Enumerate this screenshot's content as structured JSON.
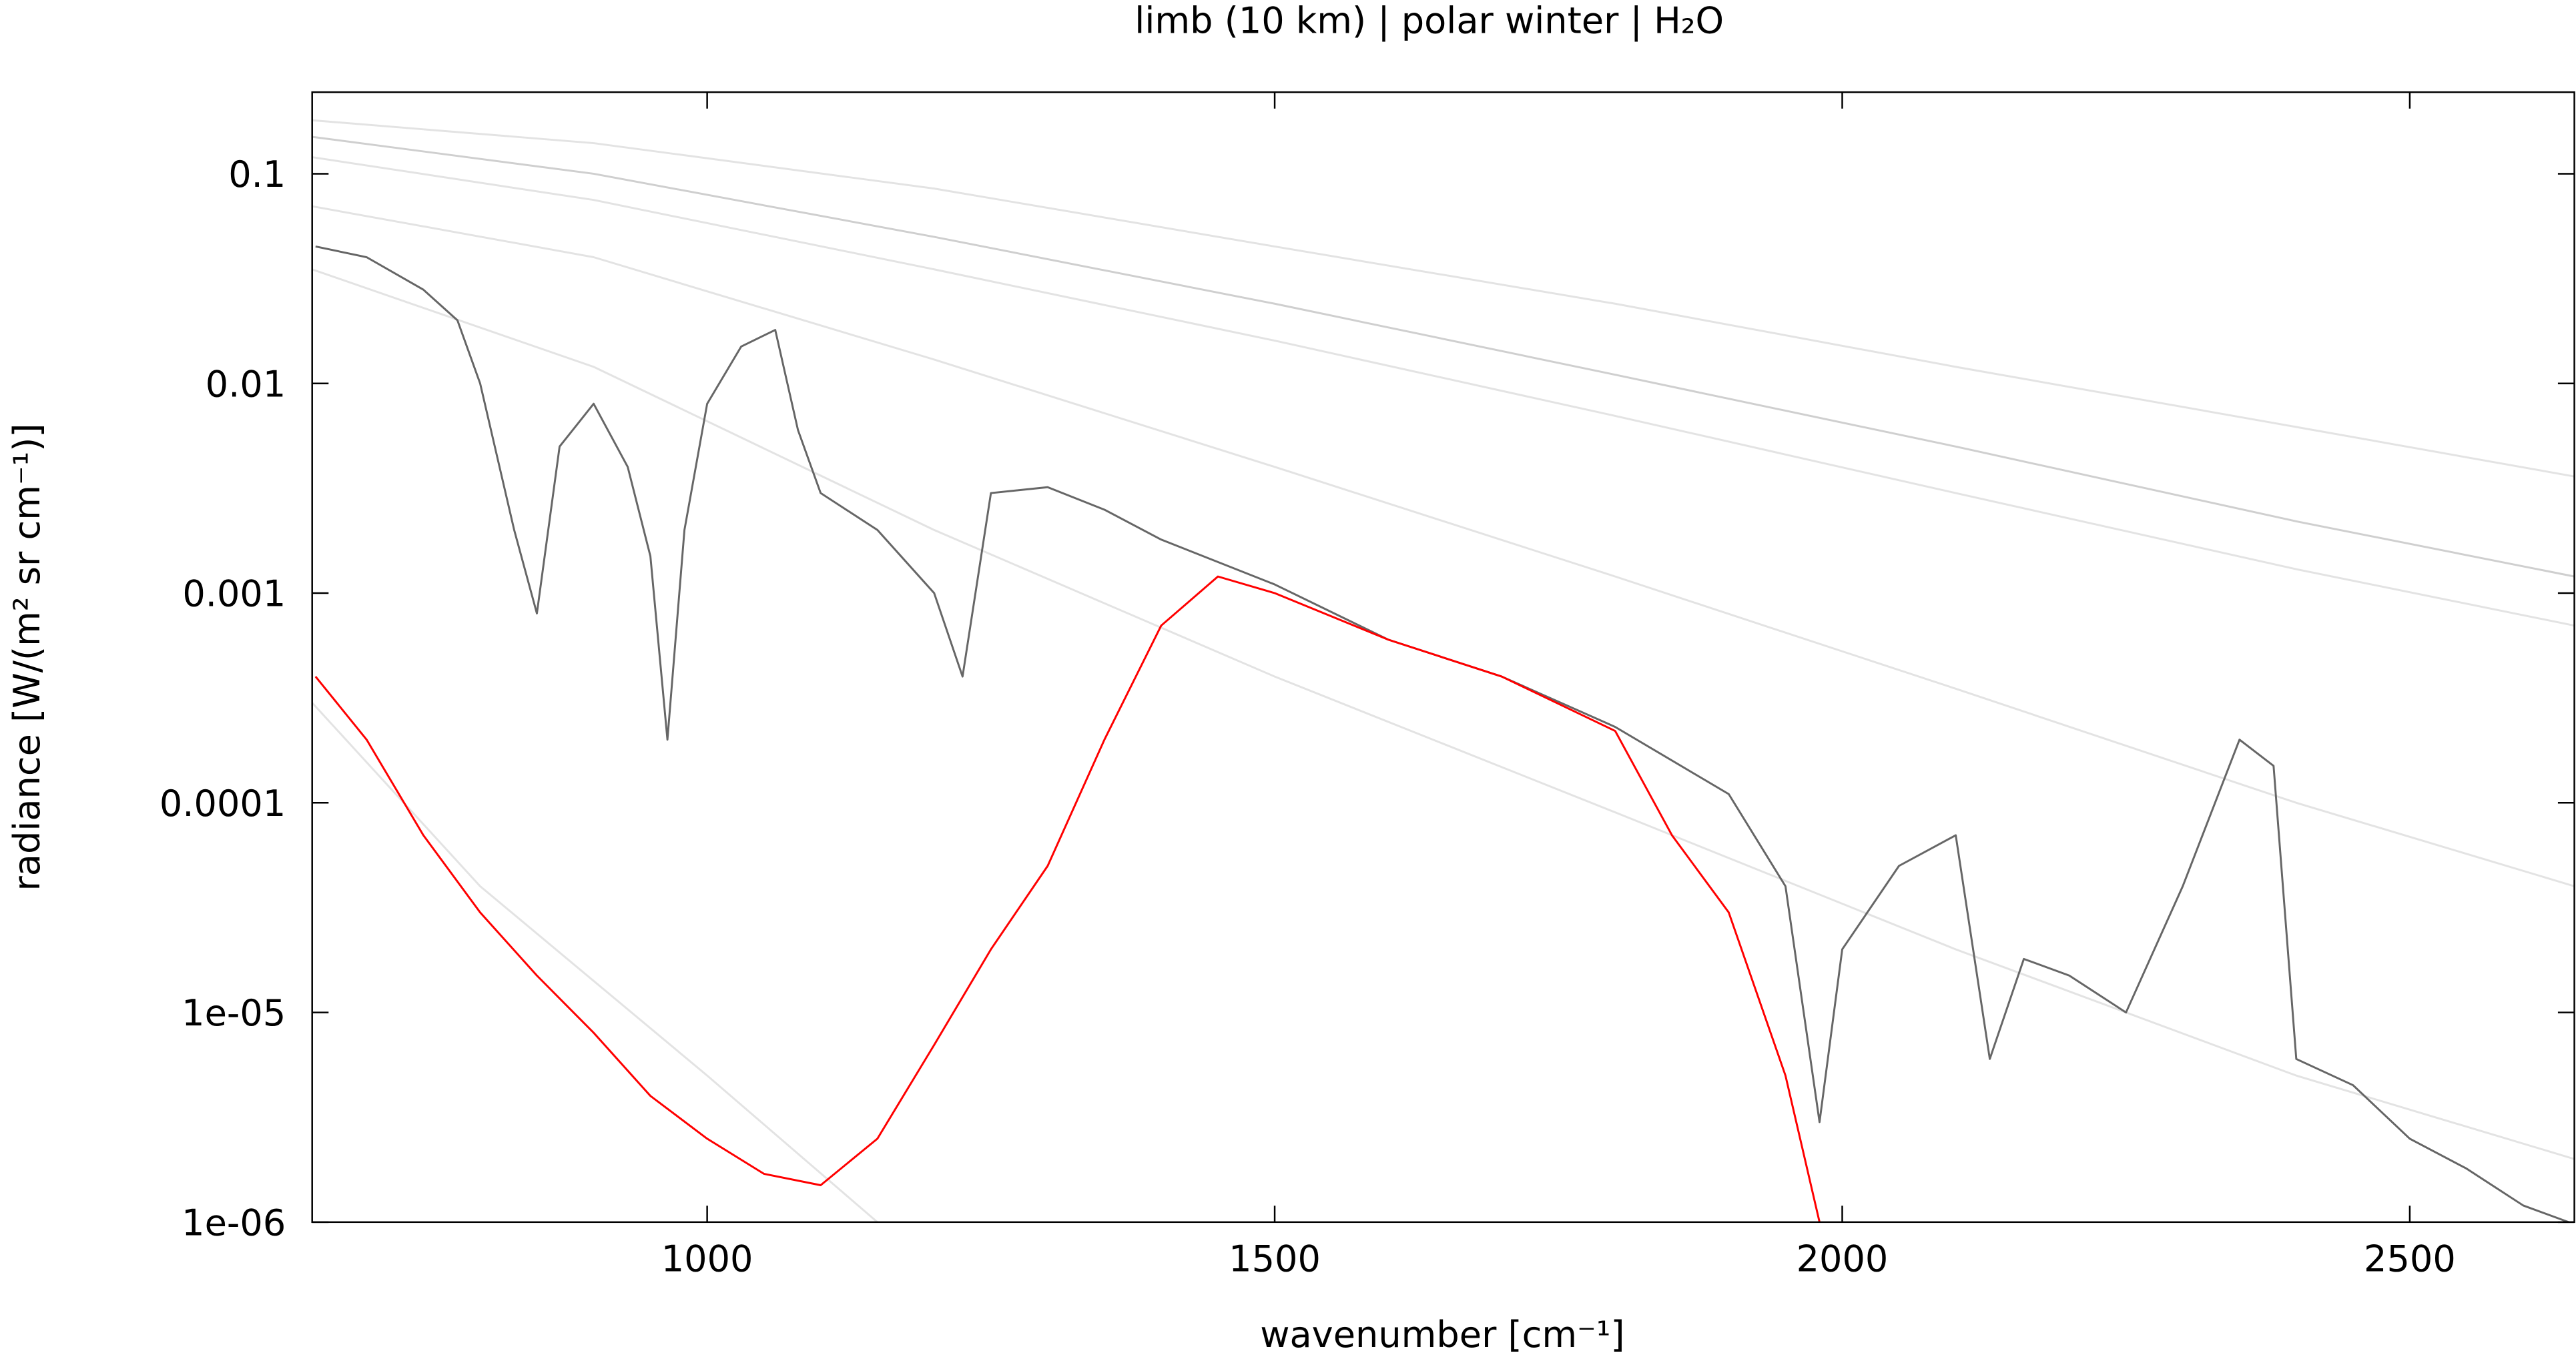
{
  "chart_data": {
    "type": "line",
    "title": "limb (10 km) | polar winter | H₂O",
    "xlabel": "wavenumber [cm⁻¹]",
    "ylabel": "radiance [W/(m² sr cm⁻¹)]",
    "xlim": [
      652,
      2645
    ],
    "ylim": [
      1e-06,
      0.245
    ],
    "ylog": true,
    "xticks": [
      1000,
      1500,
      2000,
      2500
    ],
    "yticks": [
      0.1,
      0.01,
      0.001,
      0.0001,
      {
        "value": 1e-05,
        "label": "1e-05"
      },
      {
        "value": 1e-06,
        "label": "1e-06"
      }
    ],
    "series": [
      {
        "color": "#e3e3e3",
        "x": [
          652,
          900,
          1200,
          1500,
          1800,
          2100,
          2400,
          2645
        ],
        "values": [
          0.18,
          0.14,
          0.085,
          0.045,
          0.024,
          0.012,
          0.0062,
          0.0036
        ]
      },
      {
        "color": "#cfcfcf",
        "x": [
          652,
          900,
          1200,
          1500,
          1800,
          2100,
          2400,
          2645
        ],
        "values": [
          0.15,
          0.1,
          0.05,
          0.024,
          0.011,
          0.005,
          0.0022,
          0.0012
        ]
      },
      {
        "color": "#e3e3e3",
        "x": [
          652,
          900,
          1200,
          1500,
          1800,
          2100,
          2400,
          2645
        ],
        "values": [
          0.12,
          0.075,
          0.035,
          0.016,
          0.007,
          0.003,
          0.0013,
          0.0007
        ]
      },
      {
        "color": "#e3e3e3",
        "x": [
          652,
          900,
          1200,
          1500,
          1800,
          2100,
          2400,
          2645
        ],
        "values": [
          0.07,
          0.04,
          0.013,
          0.004,
          0.0012,
          0.00035,
          0.0001,
          4e-05
        ]
      },
      {
        "color": "#e3e3e3",
        "x": [
          652,
          900,
          1200,
          1500,
          1800,
          2100,
          2400,
          2645
        ],
        "values": [
          0.035,
          0.012,
          0.002,
          0.0004,
          9e-05,
          2e-05,
          5e-06,
          2e-06
        ]
      },
      {
        "color": "#e3e3e3",
        "x": [
          652,
          800,
          1000,
          1150
        ],
        "values": [
          0.0003,
          4e-05,
          5e-06,
          1e-06
        ]
      },
      {
        "color": "#666666",
        "x": [
          655,
          700,
          750,
          780,
          800,
          830,
          850,
          870,
          900,
          930,
          950,
          965,
          980,
          1000,
          1030,
          1060,
          1080,
          1100,
          1150,
          1200,
          1225,
          1250,
          1300,
          1350,
          1400,
          1500,
          1600,
          1700,
          1800,
          1900,
          1950,
          1980,
          2000,
          2050,
          2100,
          2130,
          2160,
          2200,
          2250,
          2300,
          2350,
          2380,
          2400,
          2450,
          2500,
          2550,
          2600,
          2640
        ],
        "values": [
          0.045,
          0.04,
          0.028,
          0.02,
          0.01,
          0.002,
          0.0008,
          0.005,
          0.008,
          0.004,
          0.0015,
          0.0002,
          0.002,
          0.008,
          0.015,
          0.018,
          0.006,
          0.003,
          0.002,
          0.001,
          0.0004,
          0.003,
          0.0032,
          0.0025,
          0.0018,
          0.0011,
          0.0006,
          0.0004,
          0.00023,
          0.00011,
          4e-05,
          3e-06,
          2e-05,
          5e-05,
          7e-05,
          6e-06,
          1.8e-05,
          1.5e-05,
          1e-05,
          4e-05,
          0.0002,
          0.00015,
          6e-06,
          4.5e-06,
          2.5e-06,
          1.8e-06,
          1.2e-06,
          1e-06
        ]
      },
      {
        "color": "#ff0000",
        "x": [
          655,
          700,
          750,
          800,
          850,
          900,
          950,
          1000,
          1050,
          1100,
          1150,
          1200,
          1250,
          1300,
          1350,
          1400,
          1450,
          1500,
          1600,
          1700,
          1800,
          1850,
          1900,
          1950,
          1980
        ],
        "values": [
          0.0004,
          0.0002,
          7e-05,
          3e-05,
          1.5e-05,
          8e-06,
          4e-06,
          2.5e-06,
          1.7e-06,
          1.5e-06,
          2.5e-06,
          7e-06,
          2e-05,
          5e-05,
          0.0002,
          0.0007,
          0.0012,
          0.001,
          0.0006,
          0.0004,
          0.00022,
          7e-05,
          3e-05,
          5e-06,
          1e-06
        ]
      }
    ]
  }
}
